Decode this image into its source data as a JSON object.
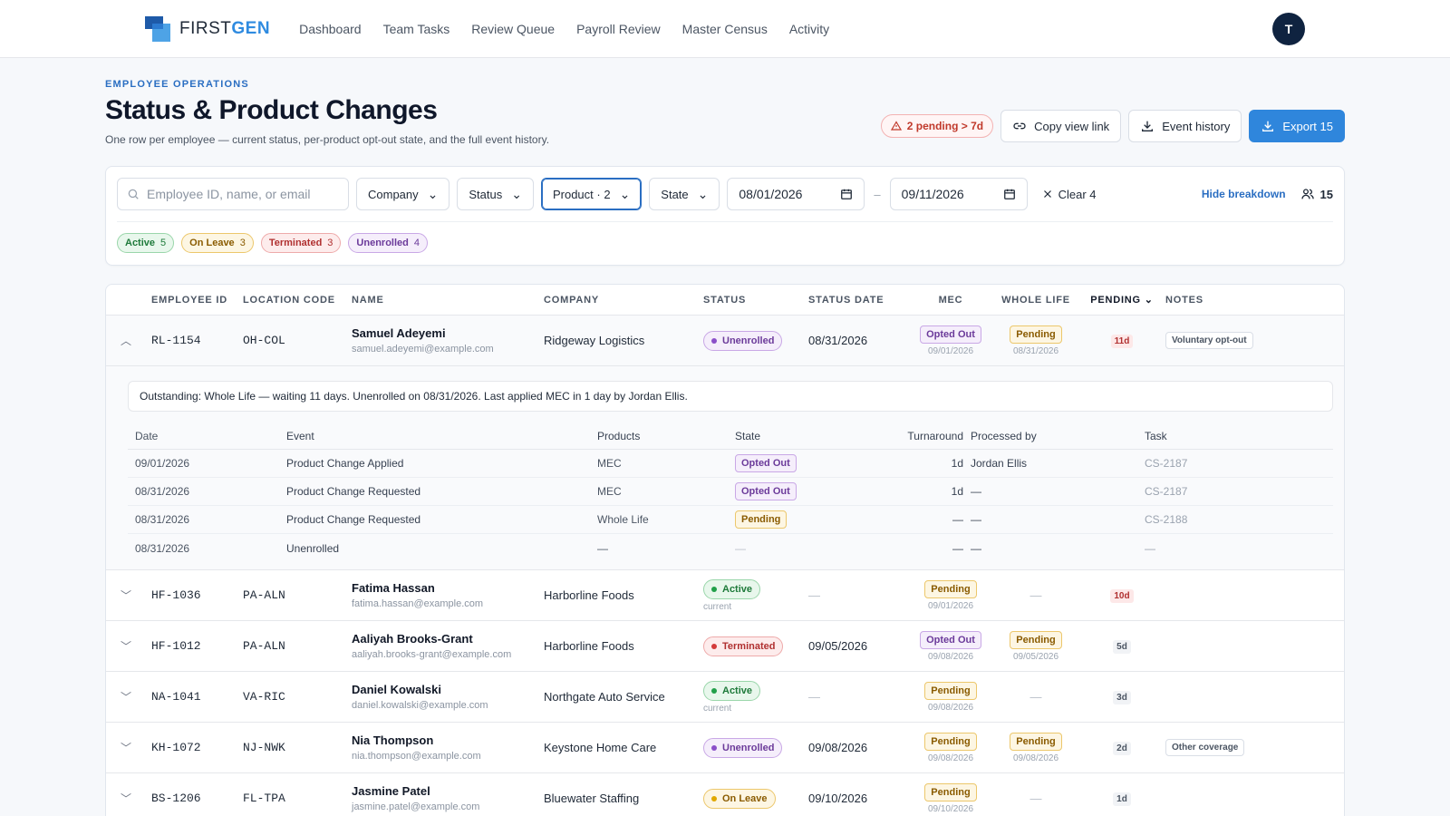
{
  "nav": {
    "brand_first": "FIRST",
    "brand_second": "GEN",
    "links": [
      "Dashboard",
      "Team Tasks",
      "Review Queue",
      "Payroll Review",
      "Master Census",
      "Activity"
    ],
    "avatar": "T"
  },
  "header": {
    "eyebrow": "EMPLOYEE OPERATIONS",
    "title": "Status & Product Changes",
    "subtitle": "One row per employee — current status, per-product opt-out state, and the full event history.",
    "pending_alert": "2 pending > 7d",
    "copy_link": "Copy view link",
    "event_history": "Event history",
    "export": "Export 15"
  },
  "filters": {
    "search_placeholder": "Employee ID, name, or email",
    "company": "Company",
    "status": "Status",
    "product": "Product · 2",
    "state": "State",
    "date_from": "08/01/2026",
    "date_to": "09/11/2026",
    "clear": "Clear 4",
    "hide_breakdown": "Hide breakdown",
    "count": "15",
    "chips": [
      {
        "label": "Active",
        "count": "5"
      },
      {
        "label": "On Leave",
        "count": "3"
      },
      {
        "label": "Terminated",
        "count": "3"
      },
      {
        "label": "Unenrolled",
        "count": "4"
      }
    ]
  },
  "table": {
    "columns": [
      "EMPLOYEE ID",
      "LOCATION CODE",
      "NAME",
      "COMPANY",
      "STATUS",
      "STATUS DATE",
      "MEC",
      "WHOLE LIFE",
      "PENDING",
      "NOTES"
    ],
    "rows": [
      {
        "id": "RL-1154",
        "loc": "OH-COL",
        "name": "Samuel Adeyemi",
        "email": "samuel.adeyemi@example.com",
        "company": "Ridgeway Logistics",
        "status": "Unenrolled",
        "status_sub": "",
        "status_date": "08/31/2026",
        "mec": "Opted Out",
        "mec_date": "09/01/2026",
        "wl": "Pending",
        "wl_date": "08/31/2026",
        "pending": "11d",
        "note": "Voluntary opt-out"
      },
      {
        "id": "HF-1036",
        "loc": "PA-ALN",
        "name": "Fatima Hassan",
        "email": "fatima.hassan@example.com",
        "company": "Harborline Foods",
        "status": "Active",
        "status_sub": "current",
        "status_date": "—",
        "mec": "Pending",
        "mec_date": "09/01/2026",
        "wl": "—",
        "wl_date": "",
        "pending": "10d",
        "note": ""
      },
      {
        "id": "HF-1012",
        "loc": "PA-ALN",
        "name": "Aaliyah Brooks-Grant",
        "email": "aaliyah.brooks-grant@example.com",
        "company": "Harborline Foods",
        "status": "Terminated",
        "status_sub": "",
        "status_date": "09/05/2026",
        "mec": "Opted Out",
        "mec_date": "09/08/2026",
        "wl": "Pending",
        "wl_date": "09/05/2026",
        "pending": "5d",
        "note": ""
      },
      {
        "id": "NA-1041",
        "loc": "VA-RIC",
        "name": "Daniel Kowalski",
        "email": "daniel.kowalski@example.com",
        "company": "Northgate Auto Service",
        "status": "Active",
        "status_sub": "current",
        "status_date": "—",
        "mec": "Pending",
        "mec_date": "09/08/2026",
        "wl": "—",
        "wl_date": "",
        "pending": "3d",
        "note": ""
      },
      {
        "id": "KH-1072",
        "loc": "NJ-NWK",
        "name": "Nia Thompson",
        "email": "nia.thompson@example.com",
        "company": "Keystone Home Care",
        "status": "Unenrolled",
        "status_sub": "",
        "status_date": "09/08/2026",
        "mec": "Pending",
        "mec_date": "09/08/2026",
        "wl": "Pending",
        "wl_date": "09/08/2026",
        "pending": "2d",
        "note": "Other coverage"
      },
      {
        "id": "BS-1206",
        "loc": "FL-TPA",
        "name": "Jasmine Patel",
        "email": "jasmine.patel@example.com",
        "company": "Bluewater Staffing",
        "status": "On Leave",
        "status_sub": "",
        "status_date": "09/10/2026",
        "mec": "Pending",
        "mec_date": "09/10/2026",
        "wl": "—",
        "wl_date": "",
        "pending": "1d",
        "note": ""
      }
    ]
  },
  "expansion": {
    "outstanding": "Outstanding: Whole Life — waiting 11 days. Unenrolled on 08/31/2026. Last applied MEC in 1 day by Jordan Ellis.",
    "columns": [
      "Date",
      "Event",
      "Products",
      "State",
      "Turnaround",
      "Processed by",
      "Task"
    ],
    "events": [
      {
        "date": "09/01/2026",
        "event": "Product Change Applied",
        "products": "MEC",
        "state": "Opted Out",
        "turn": "1d",
        "by": "Jordan Ellis",
        "task": "CS-2187"
      },
      {
        "date": "08/31/2026",
        "event": "Product Change Requested",
        "products": "MEC",
        "state": "Opted Out",
        "turn": "1d",
        "by": "—",
        "task": "CS-2187"
      },
      {
        "date": "08/31/2026",
        "event": "Product Change Requested",
        "products": "Whole Life",
        "state": "Pending",
        "turn": "—",
        "by": "—",
        "task": "CS-2188"
      },
      {
        "date": "08/31/2026",
        "event": "Unenrolled",
        "products": "—",
        "state": "—",
        "turn": "—",
        "by": "—",
        "task": "—"
      }
    ]
  },
  "colors": {
    "primary": "#2f86dc",
    "navy": "#0f2340",
    "accent": "#2a6ec2"
  }
}
